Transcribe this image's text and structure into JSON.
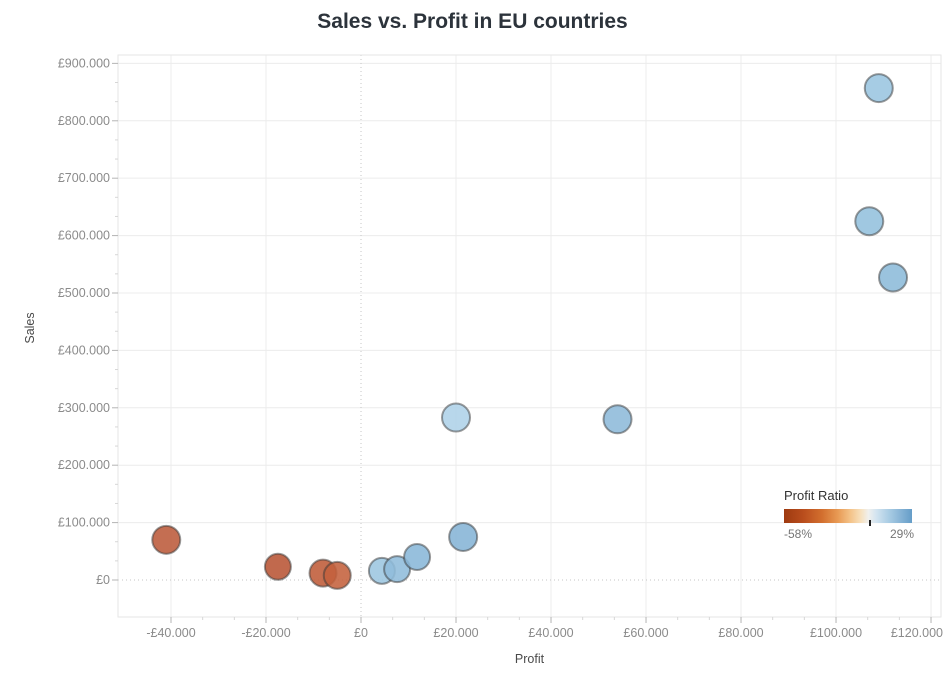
{
  "chart_data": {
    "type": "scatter",
    "title": "Sales vs. Profit in EU countries",
    "xlabel": "Profit",
    "ylabel": "Sales",
    "grid": true,
    "xlim": [
      -51160,
      122100
    ],
    "ylim": [
      -64460,
      914600
    ],
    "x_ticks": [
      -40000,
      -20000,
      0,
      20000,
      40000,
      60000,
      80000,
      100000,
      120000
    ],
    "x_tick_labels": [
      "-£40.000",
      "-£20.000",
      "£0",
      "£20.000",
      "£40.000",
      "£60.000",
      "£80.000",
      "£100.000",
      "£120.000"
    ],
    "y_ticks": [
      0,
      100000,
      200000,
      300000,
      400000,
      500000,
      600000,
      700000,
      800000,
      900000
    ],
    "y_tick_labels": [
      "£0",
      "£100.000",
      "£200.000",
      "£300.000",
      "£400.000",
      "£500.000",
      "£600.000",
      "£700.000",
      "£800.000",
      "£900.000"
    ],
    "points": [
      {
        "profit": -41000,
        "sales": 70000,
        "color": "#bc5a3a",
        "r": 14
      },
      {
        "profit": -17500,
        "sales": 23000,
        "color": "#b85434",
        "r": 13
      },
      {
        "profit": -8000,
        "sales": 12000,
        "color": "#bf5b38",
        "r": 13.5
      },
      {
        "profit": -5000,
        "sales": 8000,
        "color": "#c4613c",
        "r": 13.5
      },
      {
        "profit": 4400,
        "sales": 16000,
        "color": "#9cc6e0",
        "r": 13
      },
      {
        "profit": 7600,
        "sales": 19000,
        "color": "#8fbcdb",
        "r": 13
      },
      {
        "profit": 11800,
        "sales": 40000,
        "color": "#89b7d8",
        "r": 13
      },
      {
        "profit": 21500,
        "sales": 75000,
        "color": "#85b4d6",
        "r": 14
      },
      {
        "profit": 20000,
        "sales": 283000,
        "color": "#aed2e8",
        "r": 14
      },
      {
        "profit": 54000,
        "sales": 280000,
        "color": "#8db9da",
        "r": 14
      },
      {
        "profit": 112000,
        "sales": 527000,
        "color": "#8cbbda",
        "r": 14
      },
      {
        "profit": 107000,
        "sales": 625000,
        "color": "#93c0dd",
        "r": 14
      },
      {
        "profit": 109000,
        "sales": 857000,
        "color": "#9ac5e0",
        "r": 14
      }
    ],
    "legend": {
      "title": "Profit Ratio",
      "min_label": "-58%",
      "max_label": "29%",
      "zero_tick_fraction": 0.664,
      "gradient_stops": [
        {
          "offset": 0,
          "color": "#9e3a10"
        },
        {
          "offset": 0.15,
          "color": "#b94d1d"
        },
        {
          "offset": 0.3,
          "color": "#d3702f"
        },
        {
          "offset": 0.42,
          "color": "#e89a54"
        },
        {
          "offset": 0.52,
          "color": "#f4c389"
        },
        {
          "offset": 0.6,
          "color": "#f7e0bd"
        },
        {
          "offset": 0.66,
          "color": "#f0f0ee"
        },
        {
          "offset": 0.72,
          "color": "#d3e4f0"
        },
        {
          "offset": 0.82,
          "color": "#a9cce4"
        },
        {
          "offset": 1,
          "color": "#659dc8"
        }
      ]
    },
    "style": {
      "grid_color": "#ececec",
      "zero_line_color": "#c6c6c6",
      "border_color": "#e6e6e6",
      "major_tick_color": "#b4b4b4",
      "minor_tick_color": "#d6d6d6",
      "tick_label_color": "#8b8b8b",
      "mark_stroke_color": "rgba(55,55,55,0.5)",
      "mark_fill_opacity": 0.88
    }
  }
}
